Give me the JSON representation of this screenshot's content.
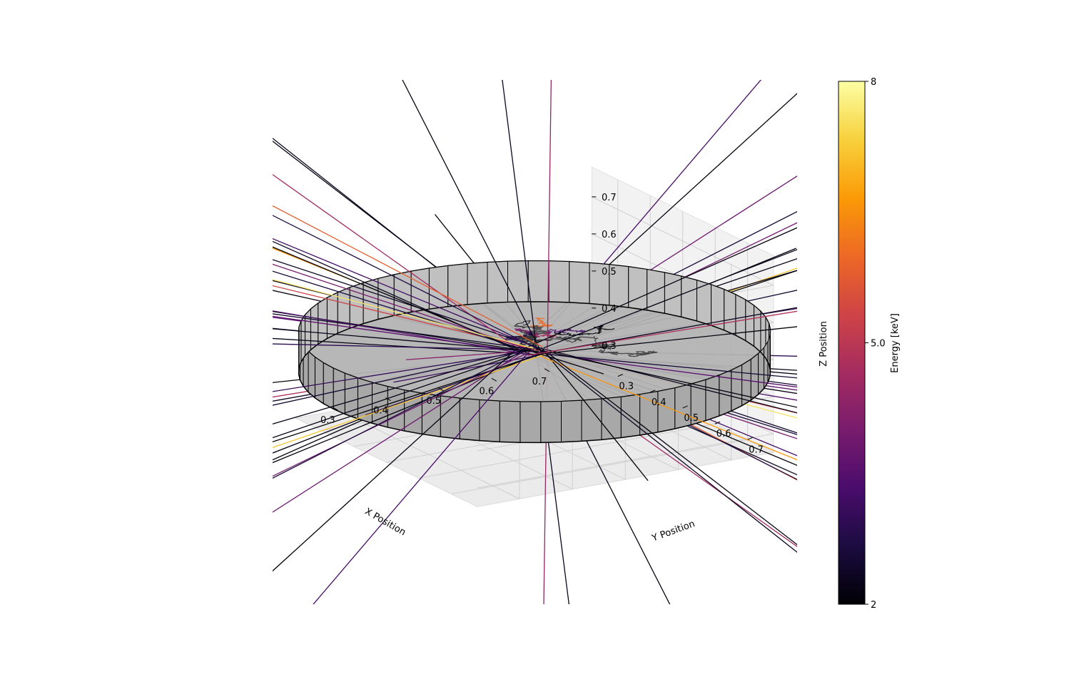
{
  "chart_data": {
    "type": "scatter",
    "projection": "3d",
    "title": "",
    "xlabel": "X Position",
    "ylabel": "Y Position",
    "zlabel": "Z Position",
    "xlim": [
      0.22,
      0.78
    ],
    "ylim": [
      0.22,
      0.78
    ],
    "zlim": [
      0.25,
      0.78
    ],
    "x_ticks": [
      "0.3",
      "0.4",
      "0.5",
      "0.6",
      "0.7"
    ],
    "y_ticks": [
      "0.3",
      "0.4",
      "0.5",
      "0.6",
      "0.7"
    ],
    "z_ticks": [
      "0.3",
      "0.4",
      "0.5",
      "0.6",
      "0.7"
    ],
    "grid": true,
    "cylinder": {
      "center": [
        0.5,
        0.5
      ],
      "radius": 0.38,
      "z_bottom": 0.42,
      "z_top": 0.53,
      "color": "#b3b3b3"
    },
    "colorbar": {
      "label": "Energy [keV]",
      "colormap": "inferno",
      "range": [
        2,
        8
      ],
      "ticks": [
        "2",
        "5.0",
        "8"
      ],
      "stops": [
        "#000004",
        "#1b0c41",
        "#4a0c6b",
        "#781c6d",
        "#a52c60",
        "#cf4446",
        "#ed6925",
        "#fb9b06",
        "#f7d13d",
        "#fcffa4"
      ]
    },
    "series": [
      {
        "values": [
          2.1,
          2.3,
          2.2,
          2.0,
          2.4,
          2.2,
          2.1,
          3.5,
          3.8,
          4.2,
          3.2,
          2.8,
          4.6,
          5.3,
          6.6,
          7.2,
          3.6,
          2.5,
          2.2,
          2.3,
          2.1,
          2.0,
          4.0,
          3.1,
          2.6,
          2.9,
          3.3,
          2.2,
          2.1,
          2.4,
          5.8,
          2.0,
          2.2,
          3.9,
          2.5,
          2.3,
          2.1,
          4.4,
          2.2,
          3.0,
          2.1,
          7.6,
          2.7,
          2.2,
          3.4,
          2.0,
          2.6,
          2.3,
          4.8,
          2.1
        ]
      }
    ]
  }
}
